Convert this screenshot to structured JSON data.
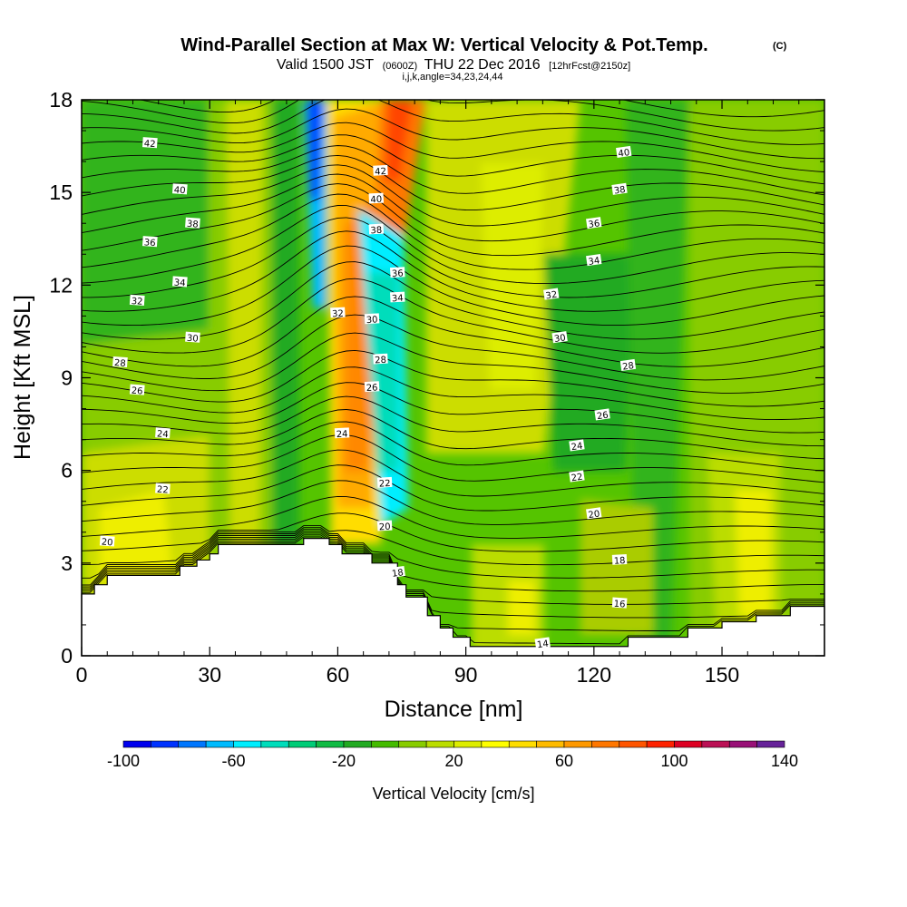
{
  "title": {
    "main": "Wind-Parallel Section at Max W: Vertical Velocity & Pot.Temp.",
    "main_suffix": "(C)",
    "valid_prefix": "Valid 1500 JST",
    "valid_utc": "(0600Z)",
    "valid_date": "THU 22 Dec 2016",
    "forecast": "[12hrFcst@2150z]",
    "indices": "i,j,k,angle=34,23,24,44"
  },
  "chart_data": {
    "type": "heatmap",
    "xlabel": "Distance [nm]",
    "ylabel": "Height [Kft MSL]",
    "xlim": [
      0,
      174
    ],
    "ylim": [
      0,
      18
    ],
    "x_ticks": [
      0,
      30,
      60,
      90,
      120,
      150
    ],
    "y_ticks": [
      0,
      3,
      6,
      9,
      12,
      15,
      18
    ],
    "x_tick_labels": [
      "0",
      "30",
      "60",
      "90",
      "120",
      "150"
    ],
    "y_tick_labels": [
      "0",
      "3",
      "6",
      "9",
      "12",
      "15",
      "18"
    ],
    "colorbar": {
      "label": "Vertical Velocity [cm/s]",
      "min": -100,
      "max": 140,
      "step": 10,
      "tick_values": [
        -100,
        -60,
        -20,
        20,
        60,
        100,
        140
      ],
      "tick_labels": [
        "-100",
        "-60",
        "-20",
        "20",
        "60",
        "100",
        "140"
      ],
      "colors": [
        "#0000ee",
        "#0033ff",
        "#0077ff",
        "#00bbff",
        "#00eeff",
        "#00ddbb",
        "#00cc77",
        "#11bb44",
        "#22aa22",
        "#44bb00",
        "#88cc00",
        "#bbdd00",
        "#dded00",
        "#ffff00",
        "#ffdd00",
        "#ffbb00",
        "#ff9900",
        "#ff7700",
        "#ff5500",
        "#ff2200",
        "#dd0022",
        "#bb1155",
        "#991177",
        "#662299"
      ]
    },
    "terrain": [
      [
        0,
        2.0
      ],
      [
        3,
        2.0
      ],
      [
        3,
        2.3
      ],
      [
        6,
        2.3
      ],
      [
        6,
        2.6
      ],
      [
        23,
        2.6
      ],
      [
        23,
        2.9
      ],
      [
        27,
        2.9
      ],
      [
        27,
        3.1
      ],
      [
        30,
        3.1
      ],
      [
        30,
        3.3
      ],
      [
        32,
        3.3
      ],
      [
        32,
        3.6
      ],
      [
        52,
        3.6
      ],
      [
        52,
        3.8
      ],
      [
        58,
        3.8
      ],
      [
        58,
        3.6
      ],
      [
        61,
        3.6
      ],
      [
        61,
        3.3
      ],
      [
        68,
        3.3
      ],
      [
        68,
        3.0
      ],
      [
        74,
        3.0
      ],
      [
        74,
        2.3
      ],
      [
        76,
        2.3
      ],
      [
        76,
        1.9
      ],
      [
        81,
        1.9
      ],
      [
        81,
        1.3
      ],
      [
        84,
        1.3
      ],
      [
        84,
        0.9
      ],
      [
        87,
        0.9
      ],
      [
        87,
        0.6
      ],
      [
        91,
        0.6
      ],
      [
        91,
        0.3
      ],
      [
        128,
        0.3
      ],
      [
        128,
        0.6
      ],
      [
        142,
        0.6
      ],
      [
        142,
        0.9
      ],
      [
        150,
        0.9
      ],
      [
        150,
        1.1
      ],
      [
        158,
        1.1
      ],
      [
        158,
        1.3
      ],
      [
        166,
        1.3
      ],
      [
        166,
        1.6
      ],
      [
        174,
        1.6
      ]
    ],
    "theta_contours": [
      {
        "level": 14,
        "label": "14",
        "label_at": [
          108,
          0.4
        ]
      },
      {
        "level": 16,
        "label": "16",
        "label_at": [
          126,
          1.7
        ]
      },
      {
        "level": 18,
        "label": "18",
        "label_at": [
          126,
          3.1
        ]
      },
      {
        "level": 18,
        "label": "18",
        "label_at": [
          74,
          2.7
        ]
      },
      {
        "level": 20,
        "label": "20",
        "label_at": [
          6,
          3.7
        ]
      },
      {
        "level": 20,
        "label": "20",
        "label_at": [
          71,
          4.2
        ]
      },
      {
        "level": 20,
        "label": "20",
        "label_at": [
          120,
          4.6
        ]
      },
      {
        "level": 22,
        "label": "22",
        "label_at": [
          19,
          5.4
        ]
      },
      {
        "level": 22,
        "label": "22",
        "label_at": [
          71,
          5.6
        ]
      },
      {
        "level": 22,
        "label": "22",
        "label_at": [
          116,
          5.8
        ]
      },
      {
        "level": 24,
        "label": "24",
        "label_at": [
          19,
          7.2
        ]
      },
      {
        "level": 24,
        "label": "24",
        "label_at": [
          61,
          7.2
        ]
      },
      {
        "level": 24,
        "label": "24",
        "label_at": [
          116,
          6.8
        ]
      },
      {
        "level": 26,
        "label": "26",
        "label_at": [
          13,
          8.6
        ]
      },
      {
        "level": 26,
        "label": "26",
        "label_at": [
          68,
          8.7
        ]
      },
      {
        "level": 26,
        "label": "26",
        "label_at": [
          122,
          7.8
        ]
      },
      {
        "level": 28,
        "label": "28",
        "label_at": [
          9,
          9.5
        ]
      },
      {
        "level": 28,
        "label": "28",
        "label_at": [
          70,
          9.6
        ]
      },
      {
        "level": 28,
        "label": "28",
        "label_at": [
          128,
          9.4
        ]
      },
      {
        "level": 30,
        "label": "30",
        "label_at": [
          26,
          10.3
        ]
      },
      {
        "level": 30,
        "label": "30",
        "label_at": [
          68,
          10.9
        ]
      },
      {
        "level": 30,
        "label": "30",
        "label_at": [
          112,
          10.3
        ]
      },
      {
        "level": 32,
        "label": "32",
        "label_at": [
          13,
          11.5
        ]
      },
      {
        "level": 32,
        "label": "32",
        "label_at": [
          60,
          11.1
        ]
      },
      {
        "level": 32,
        "label": "32",
        "label_at": [
          110,
          11.7
        ]
      },
      {
        "level": 34,
        "label": "34",
        "label_at": [
          23,
          12.1
        ]
      },
      {
        "level": 34,
        "label": "34",
        "label_at": [
          74,
          11.6
        ]
      },
      {
        "level": 34,
        "label": "34",
        "label_at": [
          120,
          12.8
        ]
      },
      {
        "level": 36,
        "label": "36",
        "label_at": [
          16,
          13.4
        ]
      },
      {
        "level": 36,
        "label": "36",
        "label_at": [
          74,
          12.4
        ]
      },
      {
        "level": 36,
        "label": "36",
        "label_at": [
          120,
          14.0
        ]
      },
      {
        "level": 38,
        "label": "38",
        "label_at": [
          26,
          14.0
        ]
      },
      {
        "level": 38,
        "label": "38",
        "label_at": [
          69,
          13.8
        ]
      },
      {
        "level": 38,
        "label": "38",
        "label_at": [
          126,
          15.1
        ]
      },
      {
        "level": 40,
        "label": "40",
        "label_at": [
          23,
          15.1
        ]
      },
      {
        "level": 40,
        "label": "40",
        "label_at": [
          69,
          14.8
        ]
      },
      {
        "level": 40,
        "label": "40",
        "label_at": [
          127,
          16.3
        ]
      },
      {
        "level": 42,
        "label": "42",
        "label_at": [
          16,
          16.6
        ]
      },
      {
        "level": 42,
        "label": "42",
        "label_at": [
          70,
          15.7
        ]
      }
    ]
  }
}
